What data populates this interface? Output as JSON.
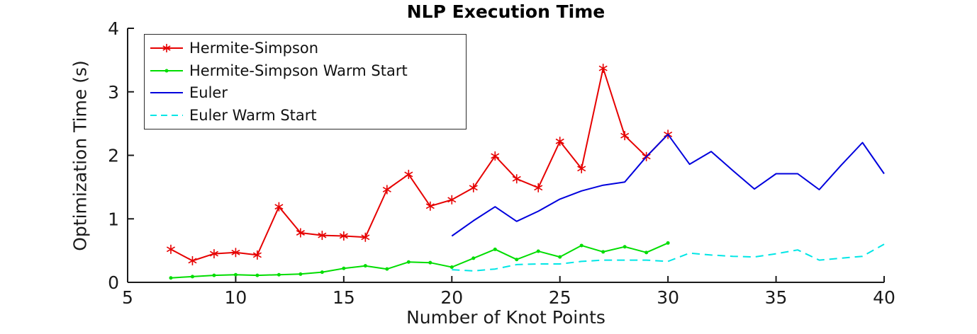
{
  "chart_data": {
    "type": "line",
    "title": "NLP Execution Time",
    "xlabel": "Number of Knot Points",
    "ylabel": "Optimization Time (s)",
    "xlim": [
      5,
      40
    ],
    "ylim": [
      0,
      4
    ],
    "x_ticks": [
      5,
      10,
      15,
      20,
      25,
      30,
      35,
      40
    ],
    "y_ticks": [
      0,
      1,
      2,
      3,
      4
    ],
    "grid": false,
    "legend_position": "upper-left",
    "axis_color": "#1a1a1a",
    "series": [
      {
        "name": "Hermite-Simpson",
        "color": "#e60000",
        "style": "solid",
        "marker": "asterisk",
        "x": [
          7,
          8,
          9,
          10,
          11,
          12,
          13,
          14,
          15,
          16,
          17,
          18,
          19,
          20,
          21,
          22,
          23,
          24,
          25,
          26,
          27,
          28,
          29,
          30
        ],
        "y": [
          0.52,
          0.34,
          0.45,
          0.47,
          0.43,
          1.19,
          0.78,
          0.74,
          0.73,
          0.71,
          1.46,
          1.7,
          1.2,
          1.3,
          1.49,
          1.99,
          1.63,
          1.49,
          2.22,
          1.79,
          3.37,
          2.31,
          1.98,
          2.33
        ]
      },
      {
        "name": "Hermite-Simpson Warm Start",
        "color": "#00dd00",
        "style": "solid",
        "marker": "dot",
        "x": [
          7,
          8,
          9,
          10,
          11,
          12,
          13,
          14,
          15,
          16,
          17,
          18,
          19,
          20,
          21,
          22,
          23,
          24,
          25,
          26,
          27,
          28,
          29,
          30
        ],
        "y": [
          0.07,
          0.09,
          0.11,
          0.12,
          0.11,
          0.12,
          0.13,
          0.16,
          0.22,
          0.26,
          0.21,
          0.32,
          0.31,
          0.24,
          0.38,
          0.52,
          0.36,
          0.49,
          0.4,
          0.58,
          0.48,
          0.56,
          0.47,
          0.62
        ]
      },
      {
        "name": "Euler",
        "color": "#0000dd",
        "style": "solid",
        "marker": "none",
        "x": [
          20,
          21,
          22,
          23,
          24,
          25,
          26,
          27,
          28,
          29,
          30,
          31,
          32,
          33,
          34,
          35,
          36,
          37,
          38,
          39,
          40
        ],
        "y": [
          0.73,
          0.97,
          1.19,
          0.96,
          1.12,
          1.31,
          1.44,
          1.53,
          1.58,
          1.98,
          2.33,
          1.86,
          2.06,
          1.76,
          1.47,
          1.71,
          1.71,
          1.46,
          1.84,
          2.2,
          1.71
        ]
      },
      {
        "name": "Euler Warm Start",
        "color": "#00e6e6",
        "style": "dashed",
        "marker": "none",
        "x": [
          20,
          21,
          22,
          23,
          24,
          25,
          26,
          27,
          28,
          29,
          30,
          31,
          32,
          33,
          34,
          35,
          36,
          37,
          38,
          39,
          40
        ],
        "y": [
          0.2,
          0.18,
          0.21,
          0.28,
          0.29,
          0.29,
          0.33,
          0.35,
          0.35,
          0.35,
          0.33,
          0.46,
          0.43,
          0.41,
          0.4,
          0.45,
          0.51,
          0.35,
          0.38,
          0.41,
          0.6
        ]
      }
    ]
  }
}
